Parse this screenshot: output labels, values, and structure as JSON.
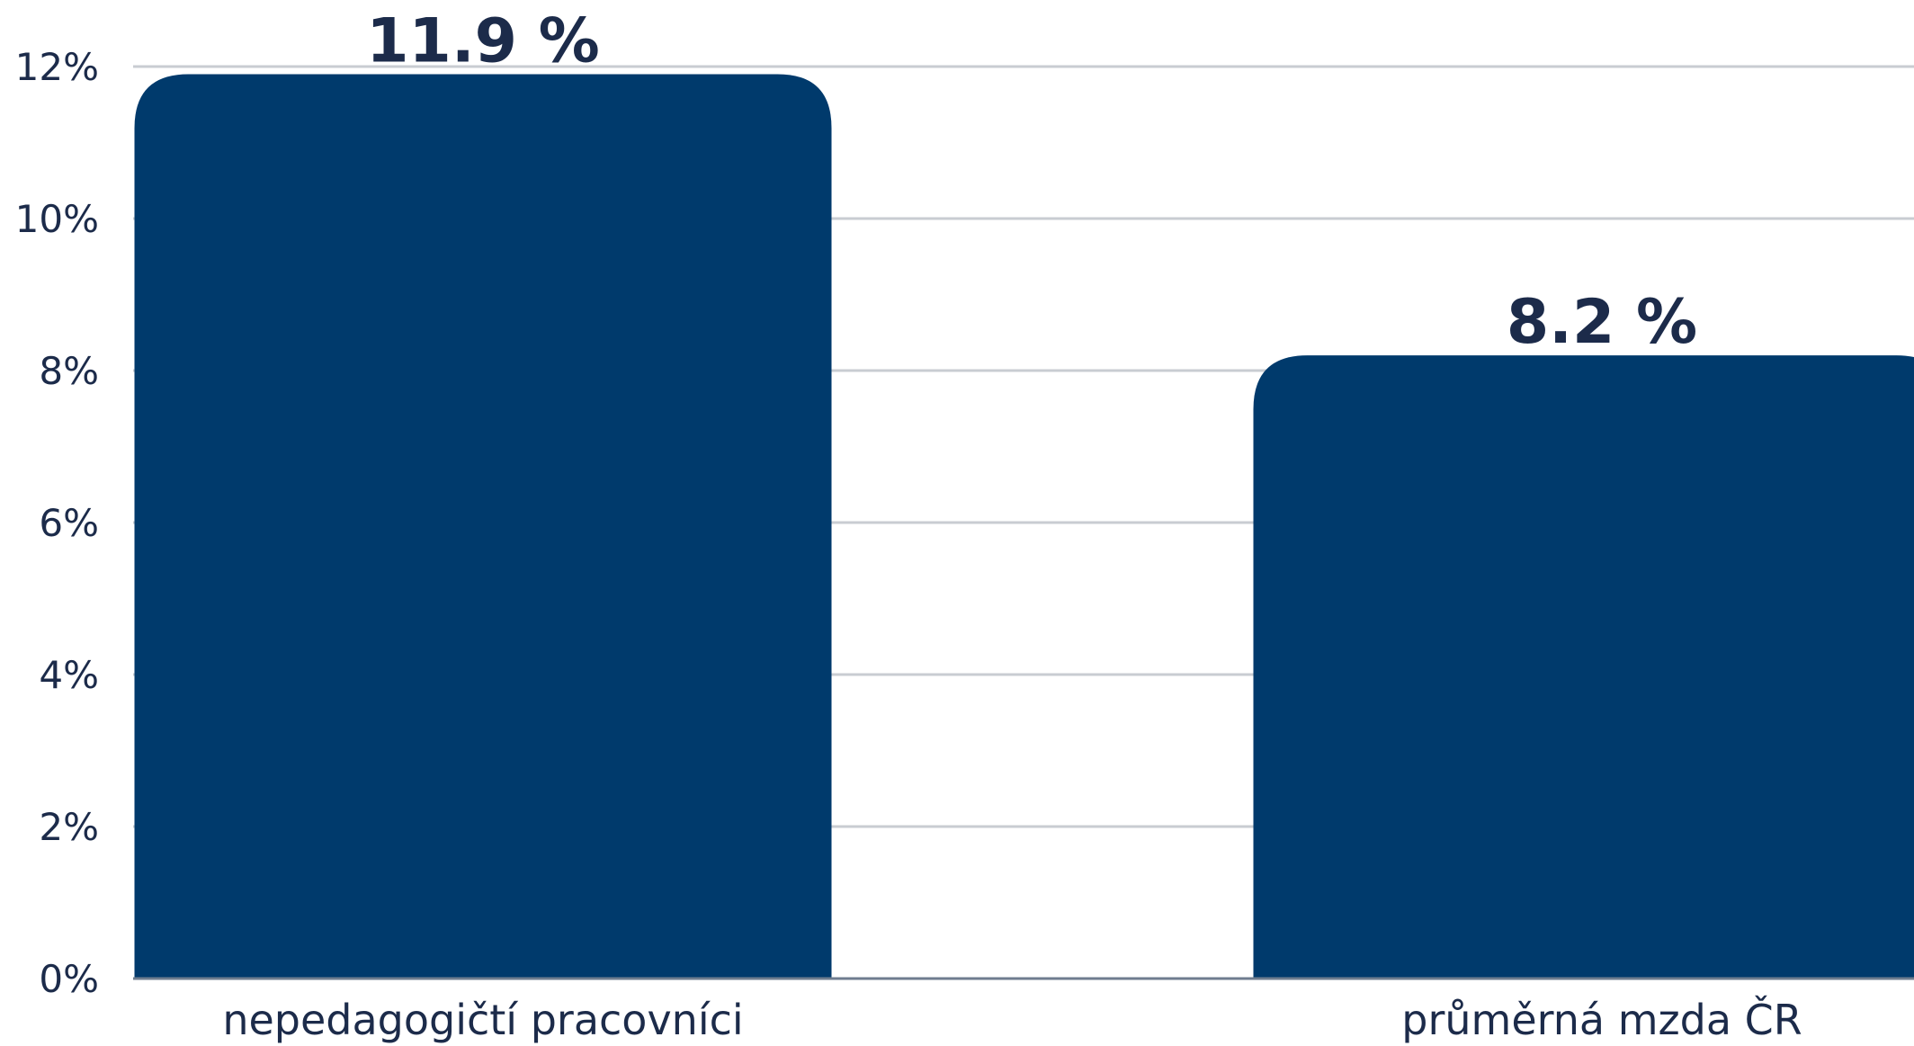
{
  "chart_data": {
    "type": "bar",
    "categories": [
      "nepedagogičtí pracovníci",
      "průměrná mzda ČR"
    ],
    "values": [
      11.9,
      8.2
    ],
    "data_labels": [
      "11.9 %",
      "8.2 %"
    ],
    "yticks": [
      0,
      2,
      4,
      6,
      8,
      10,
      12
    ],
    "ytick_labels": [
      "0%",
      "2%",
      "4%",
      "6%",
      "8%",
      "10%",
      "12%"
    ],
    "ylim": [
      0,
      12
    ],
    "title": "",
    "xlabel": "",
    "ylabel": "",
    "grid": true,
    "legend": "none",
    "colors": {
      "bar": "#003a6c",
      "text": "#1c2b4a",
      "grid": "#c9ccd2",
      "axis": "#6f7d8f"
    }
  }
}
